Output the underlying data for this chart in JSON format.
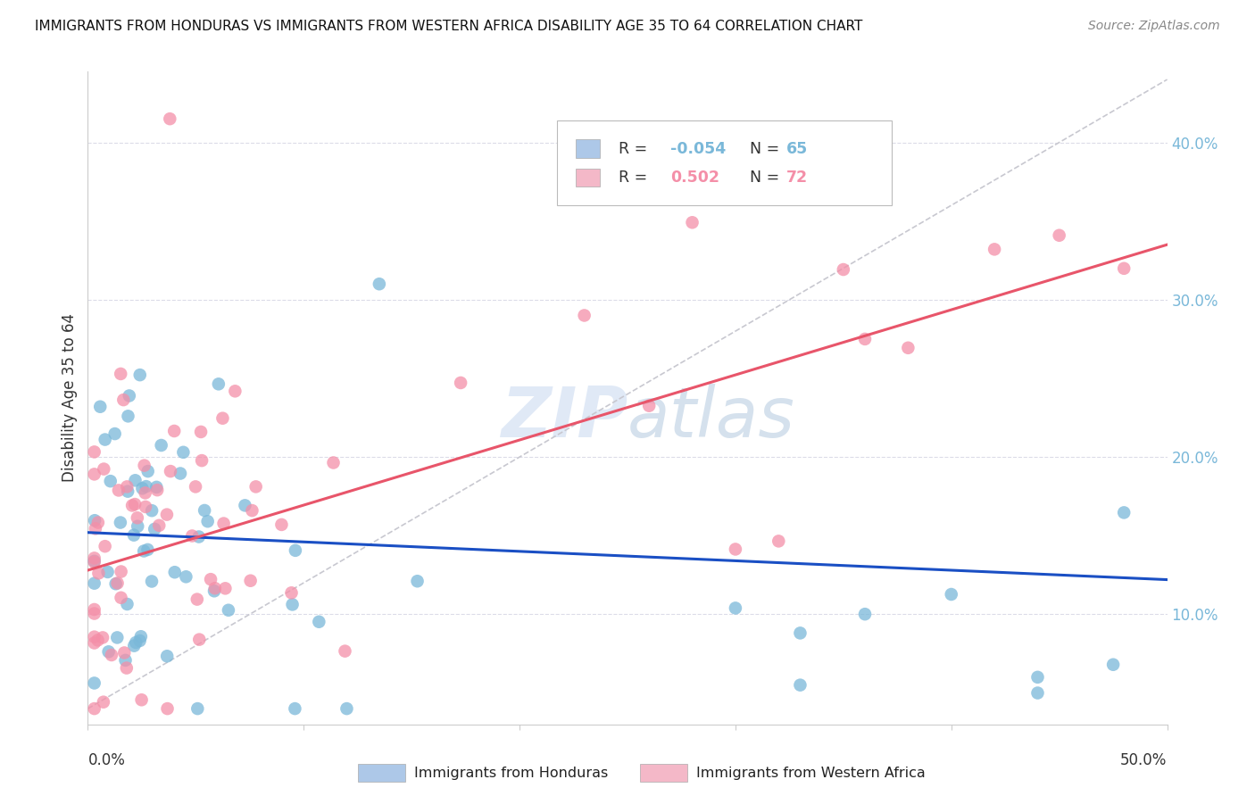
{
  "title": "IMMIGRANTS FROM HONDURAS VS IMMIGRANTS FROM WESTERN AFRICA DISABILITY AGE 35 TO 64 CORRELATION CHART",
  "source": "Source: ZipAtlas.com",
  "ylabel": "Disability Age 35 to 64",
  "right_ytick_vals": [
    0.1,
    0.2,
    0.3,
    0.4
  ],
  "xlim": [
    0.0,
    0.5
  ],
  "ylim": [
    0.03,
    0.445
  ],
  "color_honduras": "#7ab8d9",
  "color_w_africa": "#f48fa8",
  "trend_honduras_color": "#1a4fc4",
  "trend_wafrica_color": "#e8556a",
  "trend_diagonal_color": "#c8c8d0",
  "legend_label_honduras": "Immigrants from Honduras",
  "legend_label_wafrica": "Immigrants from Western Africa",
  "legend1_color": "#adc8e8",
  "legend2_color": "#f4b8c8",
  "background_color": "#ffffff",
  "grid_color": "#dcdce8",
  "watermark": "ZIPatlas",
  "r_honduras": -0.054,
  "n_honduras": 65,
  "r_wafrica": 0.502,
  "n_wafrica": 72,
  "trend_hon_y0": 0.152,
  "trend_hon_y1": 0.122,
  "trend_waf_y0": 0.128,
  "trend_waf_y1": 0.335
}
